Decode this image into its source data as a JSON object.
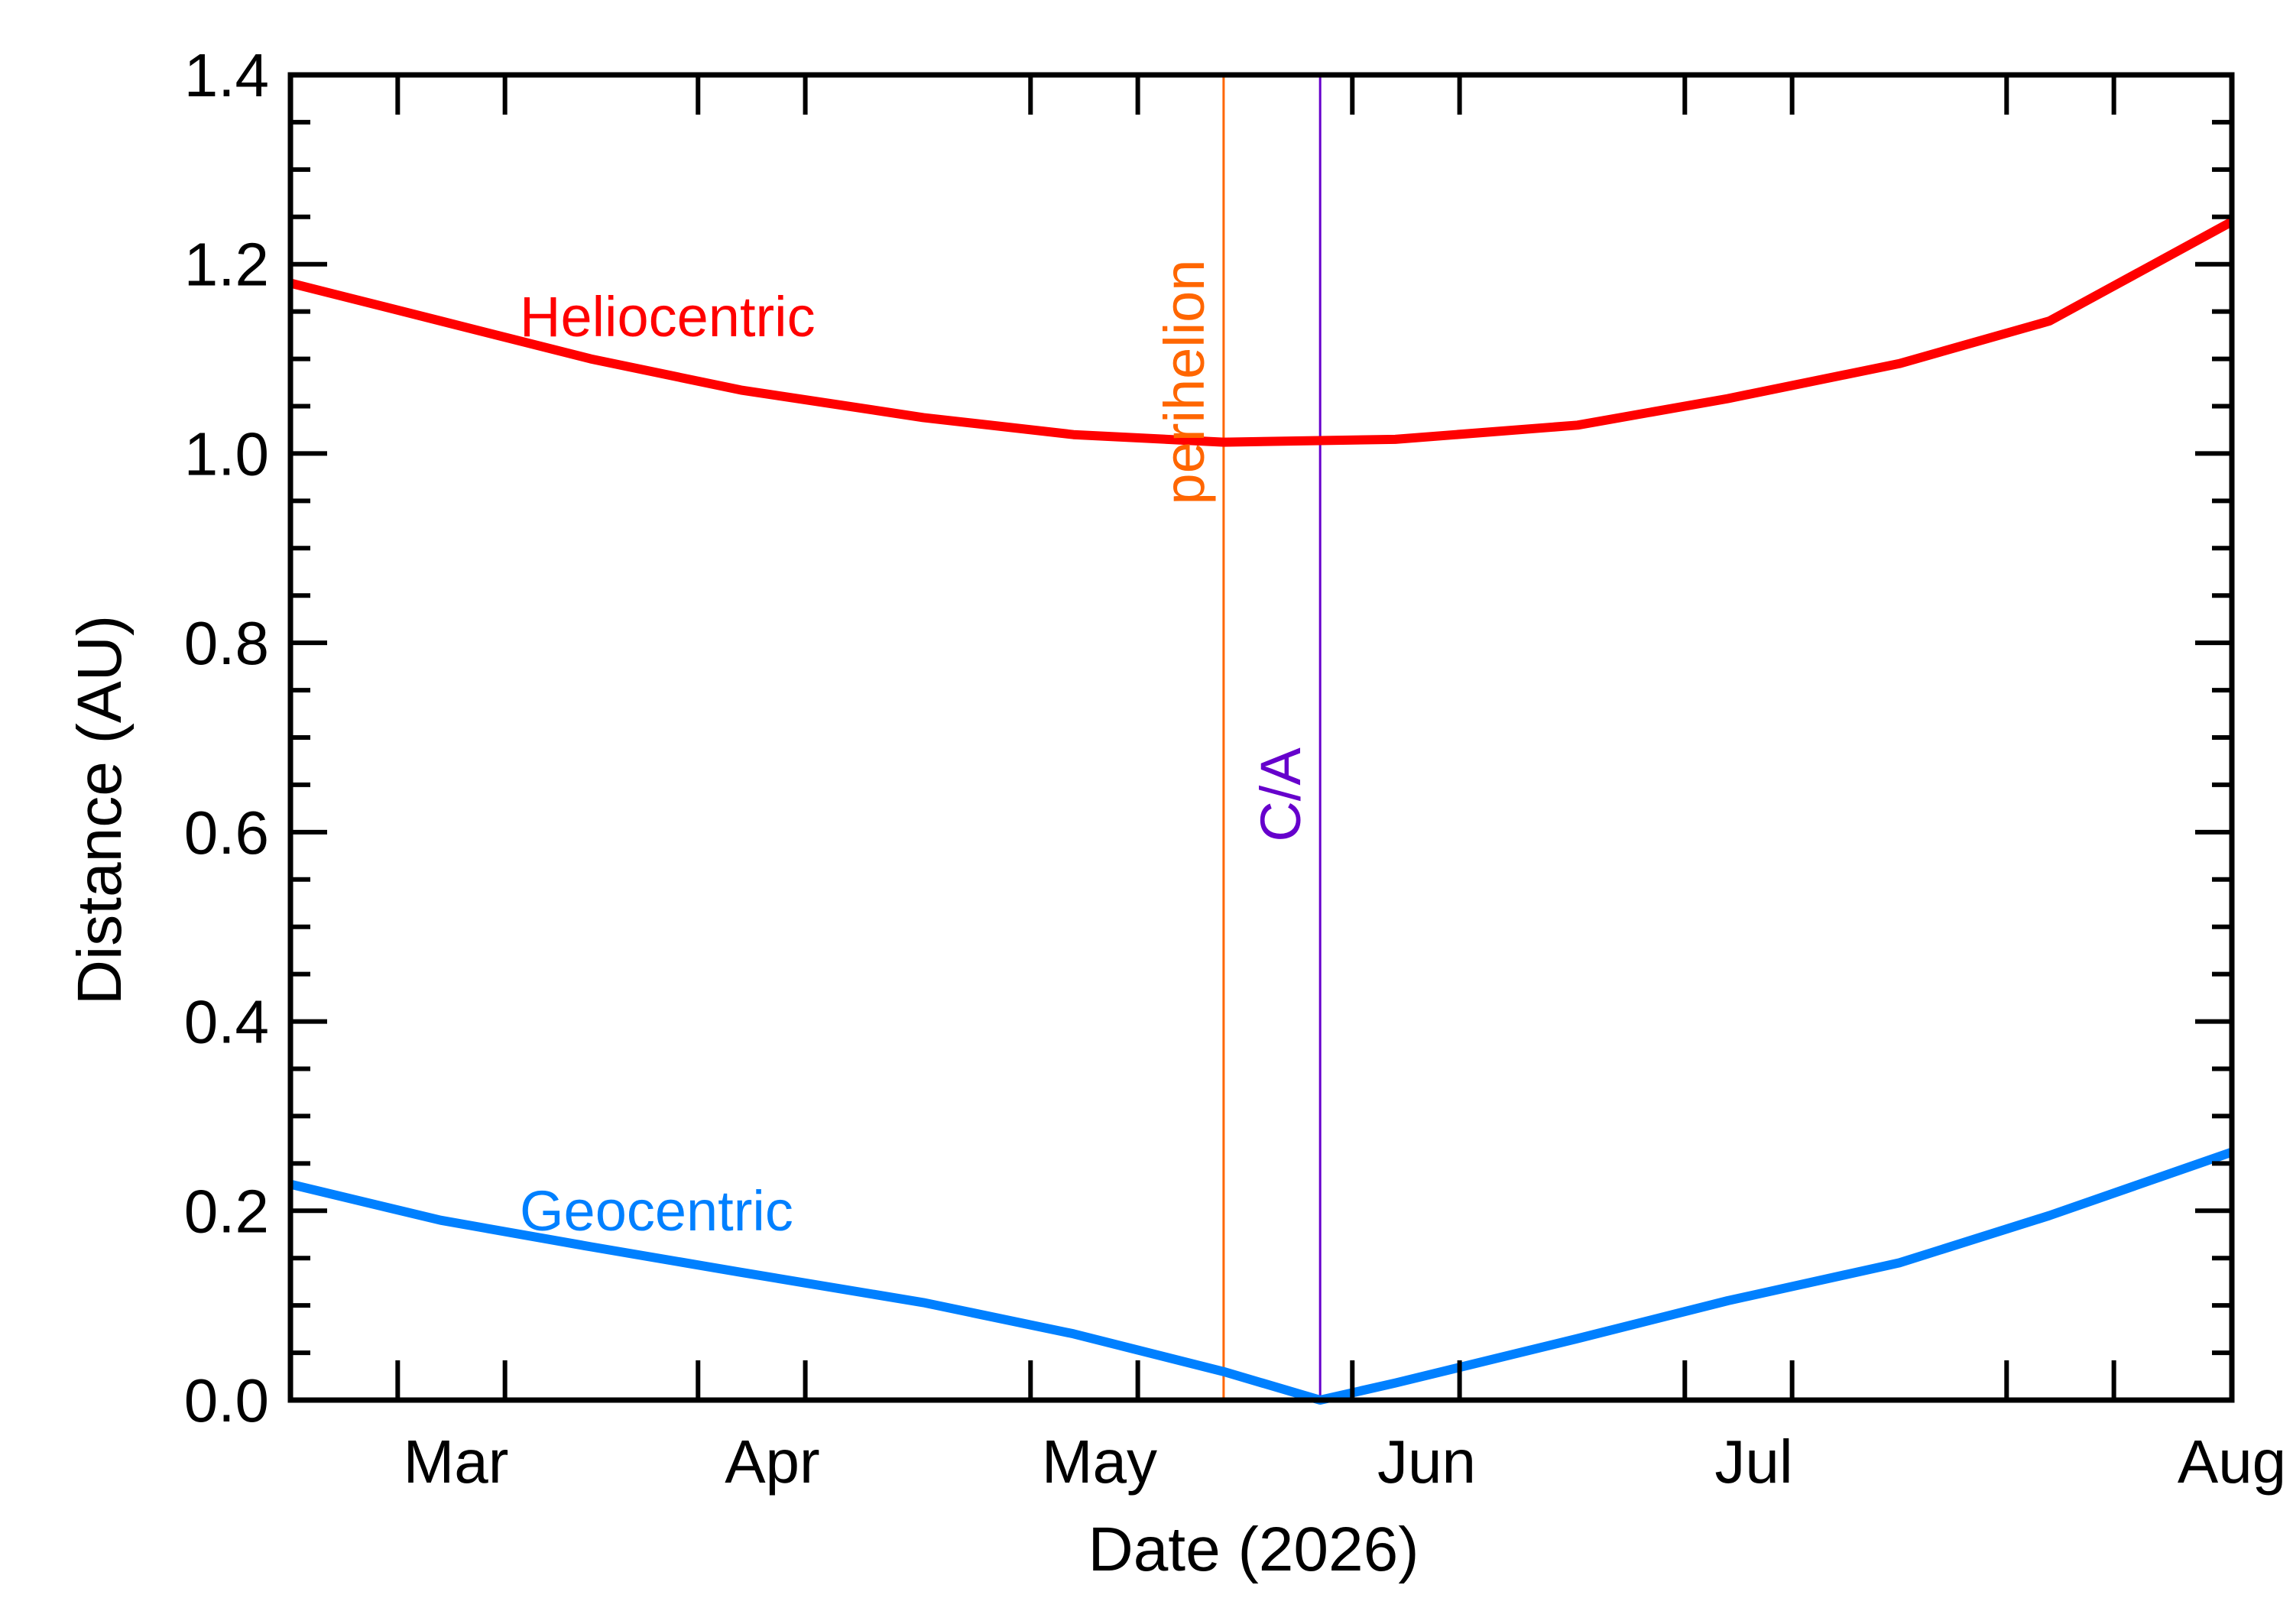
{
  "chart_data": {
    "type": "line",
    "xlabel": "Date (2026)",
    "ylabel": "Distance (AU)",
    "xlim": [
      "2026-02-01",
      "2026-08-01"
    ],
    "ylim": [
      0.0,
      1.4
    ],
    "x_ticks": [
      {
        "date": "2026-03-01",
        "label": "Mar"
      },
      {
        "date": "2026-04-01",
        "label": "Apr"
      },
      {
        "date": "2026-05-01",
        "label": "May"
      },
      {
        "date": "2026-06-01",
        "label": "Jun"
      },
      {
        "date": "2026-07-01",
        "label": "Jul"
      },
      {
        "date": "2026-08-01",
        "label": "Aug"
      }
    ],
    "y_ticks": [
      "0.0",
      "0.2",
      "0.4",
      "0.6",
      "0.8",
      "1.0",
      "1.2",
      "1.4"
    ],
    "grid": false,
    "series": [
      {
        "name": "Heliocentric",
        "color": "#ff0000",
        "points": [
          [
            "2026-02-01",
            1.18
          ],
          [
            "2026-02-15",
            1.14
          ],
          [
            "2026-03-01",
            1.1
          ],
          [
            "2026-03-15",
            1.067
          ],
          [
            "2026-04-01",
            1.038
          ],
          [
            "2026-04-15",
            1.02
          ],
          [
            "2026-04-29",
            1.012
          ],
          [
            "2026-05-15",
            1.015
          ],
          [
            "2026-06-01",
            1.03
          ],
          [
            "2026-06-15",
            1.058
          ],
          [
            "2026-07-01",
            1.095
          ],
          [
            "2026-07-15",
            1.14
          ],
          [
            "2026-08-01",
            1.245
          ]
        ]
      },
      {
        "name": "Geocentric",
        "color": "#0080ff",
        "points": [
          [
            "2026-02-01",
            0.228
          ],
          [
            "2026-02-15",
            0.19
          ],
          [
            "2026-03-01",
            0.162
          ],
          [
            "2026-03-15",
            0.135
          ],
          [
            "2026-04-01",
            0.103
          ],
          [
            "2026-04-15",
            0.07
          ],
          [
            "2026-04-29",
            0.03
          ],
          [
            "2026-05-08",
            0.0
          ],
          [
            "2026-05-15",
            0.018
          ],
          [
            "2026-06-01",
            0.065
          ],
          [
            "2026-06-15",
            0.105
          ],
          [
            "2026-07-01",
            0.145
          ],
          [
            "2026-07-15",
            0.195
          ],
          [
            "2026-08-01",
            0.262
          ]
        ]
      }
    ],
    "markers": [
      {
        "date": "2026-04-29",
        "label": "perihelion",
        "color": "#ff6600"
      },
      {
        "date": "2026-05-08",
        "label": "C/A",
        "color": "#6600cc"
      }
    ]
  }
}
